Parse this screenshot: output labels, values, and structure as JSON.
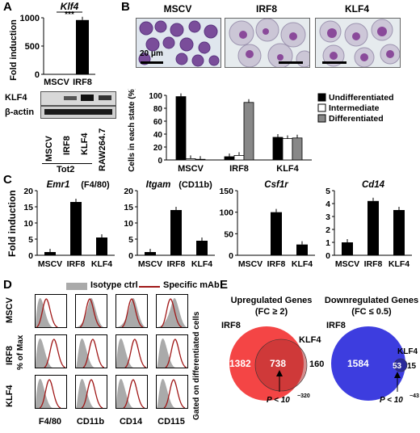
{
  "panels": {
    "a": "A",
    "b": "B",
    "c": "C",
    "d": "D",
    "e": "E"
  },
  "panel_a": {
    "chart_data": {
      "type": "bar",
      "title": "Klf4",
      "ylabel": "Fold induction",
      "categories": [
        "MSCV",
        "IRF8"
      ],
      "values": [
        1,
        960
      ],
      "ylim": [
        0,
        1000
      ],
      "yticks": [
        "0",
        "500",
        "1000"
      ],
      "significance": "***"
    },
    "blot": {
      "rows": [
        "KLF4",
        "β-actin"
      ],
      "lanes": [
        "MSCV",
        "IRF8",
        "KLF4",
        "RAW264.7"
      ],
      "group_label": "Tot2"
    }
  },
  "panel_b": {
    "micrographs": [
      "MSCV",
      "IRF8",
      "KLF4"
    ],
    "scale_bar": "20 μm",
    "chart_data": {
      "type": "bar",
      "ylabel": "Cells in each state (%)",
      "categories": [
        "MSCV",
        "IRF8",
        "KLF4"
      ],
      "series": [
        {
          "name": "Undifferentiated",
          "values": [
            98,
            5,
            35
          ],
          "color": "#000000"
        },
        {
          "name": "Intermediate",
          "values": [
            2,
            7,
            33
          ],
          "color": "#ffffff"
        },
        {
          "name": "Differentiated",
          "values": [
            1,
            89,
            34
          ],
          "color": "#888888"
        }
      ],
      "ylim": [
        0,
        100
      ],
      "yticks": [
        "0",
        "20",
        "40",
        "60",
        "80",
        "100"
      ]
    }
  },
  "panel_c": {
    "ylabel": "Fold induction",
    "chart_data": [
      {
        "type": "bar",
        "title": "Emr1",
        "subtitle": "(F4/80)",
        "categories": [
          "MSCV",
          "IRF8",
          "KLF4"
        ],
        "values": [
          1,
          16.5,
          5.5
        ],
        "ylim": [
          0,
          20
        ],
        "yticks": [
          "0",
          "5",
          "10",
          "15",
          "20"
        ]
      },
      {
        "type": "bar",
        "title": "Itgam",
        "subtitle": "(CD11b)",
        "categories": [
          "MSCV",
          "IRF8",
          "KLF4"
        ],
        "values": [
          1,
          14,
          4.5
        ],
        "ylim": [
          0,
          20
        ],
        "yticks": [
          "0",
          "5",
          "10",
          "15",
          "20"
        ]
      },
      {
        "type": "bar",
        "title": "Csf1r",
        "subtitle": "",
        "categories": [
          "MSCV",
          "IRF8",
          "KLF4"
        ],
        "values": [
          0,
          100,
          25
        ],
        "ylim": [
          0,
          150
        ],
        "yticks": [
          "0",
          "50",
          "100",
          "150"
        ]
      },
      {
        "type": "bar",
        "title": "Cd14",
        "subtitle": "",
        "categories": [
          "MSCV",
          "IRF8",
          "KLF4"
        ],
        "values": [
          1,
          4.2,
          3.5
        ],
        "ylim": [
          0,
          5
        ],
        "yticks": [
          "0",
          "1",
          "2",
          "3",
          "4",
          "5"
        ]
      }
    ]
  },
  "panel_d": {
    "legend": [
      "Isotype ctrl",
      "Specific mAb"
    ],
    "legend_colors": [
      "#aaaaaa",
      "#a01818"
    ],
    "rows": [
      "MSCV",
      "IRF8",
      "KLF4"
    ],
    "columns": [
      "F4/80",
      "CD11b",
      "CD14",
      "CD115"
    ],
    "ylabel": "% of Max",
    "side_label": "Gated on differentiated cells"
  },
  "panel_e": {
    "left": {
      "title": "Upregulated Genes",
      "subtitle": "(FC ≥ 2)",
      "set_a": "IRF8",
      "set_b": "KLF4",
      "only_a": "1382",
      "overlap": "738",
      "only_b": "160",
      "pvalue": "P < 10",
      "pexp": "−320",
      "color": "#f44040"
    },
    "right": {
      "title": "Downregulated Genes",
      "subtitle": "(FC ≤ 0.5)",
      "set_a": "IRF8",
      "set_b": "KLF4",
      "only_a": "1584",
      "overlap": "53",
      "only_b": "15",
      "pvalue": "P < 10",
      "pexp": "−43",
      "color": "#3d3ddf"
    }
  }
}
